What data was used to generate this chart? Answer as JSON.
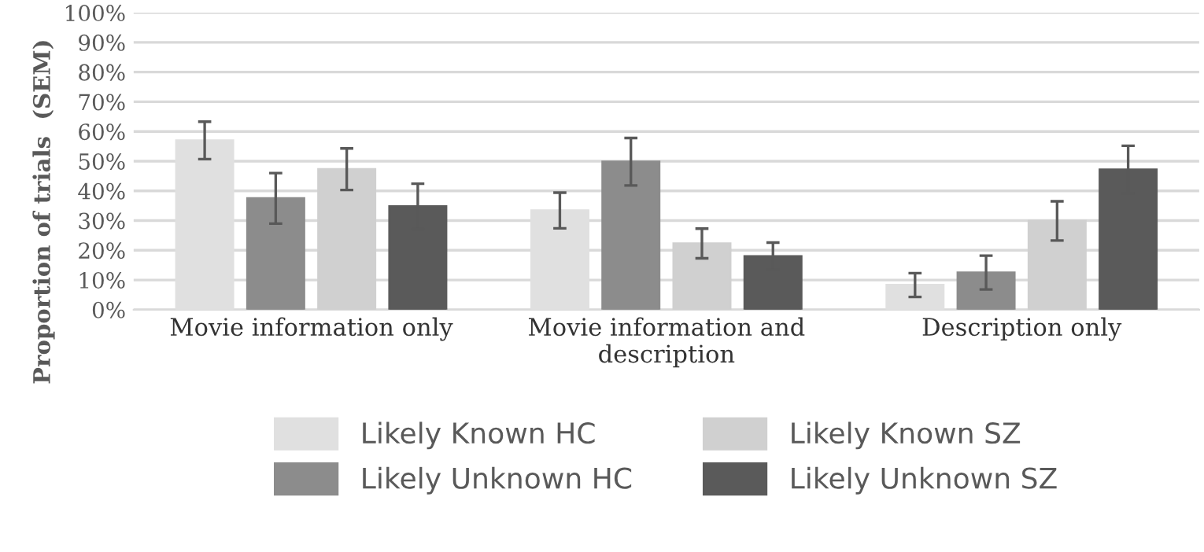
{
  "chart_data": {
    "type": "bar",
    "ylabel": "Proportion of trials  (SEM)",
    "categories": [
      "Movie information only",
      "Movie information and\ndescription",
      "Description only"
    ],
    "series": [
      {
        "name": "Likely Known HC",
        "color": "#e0e0e0",
        "values": [
          57,
          33.4,
          8.3
        ],
        "errors": [
          6.3,
          6,
          4
        ]
      },
      {
        "name": "Likely Unknown HC",
        "color": "#8c8c8c",
        "values": [
          37.5,
          49.8,
          12.5
        ],
        "errors": [
          8.5,
          8,
          5.7
        ]
      },
      {
        "name": "Likely Known SZ",
        "color": "#d0d0d0",
        "values": [
          47.3,
          22.3,
          29.9
        ],
        "errors": [
          7,
          5,
          6.6
        ]
      },
      {
        "name": "Likely Unknown SZ",
        "color": "#5a5a5a",
        "values": [
          34.8,
          18,
          47.2
        ],
        "errors": [
          7.6,
          4.6,
          8
        ]
      }
    ],
    "ylim": [
      0,
      100
    ],
    "yticks": [
      {
        "value": 0,
        "label": "0%"
      },
      {
        "value": 10,
        "label": "10%"
      },
      {
        "value": 20,
        "label": "20%"
      },
      {
        "value": 30,
        "label": "30%"
      },
      {
        "value": 40,
        "label": "40%"
      },
      {
        "value": 50,
        "label": "50%"
      },
      {
        "value": 60,
        "label": "60%"
      },
      {
        "value": 70,
        "label": "70%"
      },
      {
        "value": 80,
        "label": "80%"
      },
      {
        "value": 90,
        "label": "90%"
      },
      {
        "value": 100,
        "label": "100%"
      }
    ],
    "grid": "y",
    "legend": "bottom"
  }
}
